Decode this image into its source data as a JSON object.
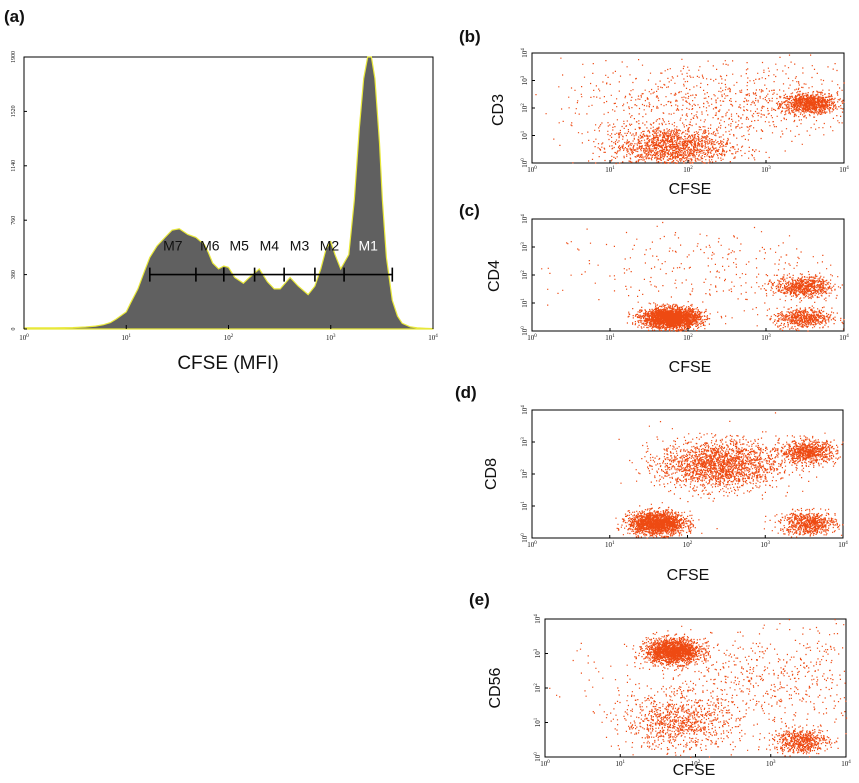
{
  "figure": {
    "panels": {
      "a": {
        "letter": "(a)"
      },
      "b": {
        "letter": "(b)"
      },
      "c": {
        "letter": "(c)"
      },
      "d": {
        "letter": "(d)"
      },
      "e": {
        "letter": "(e)"
      }
    }
  },
  "chart_data": [
    {
      "type": "area",
      "panel": "(a)",
      "xlabel": "CFSE (MFI)",
      "ylabel": "",
      "x_scale": "log",
      "xlim": [
        1,
        10000
      ],
      "ylim": [
        0,
        1900
      ],
      "x_tick_labels": [
        "10^0",
        "10^1",
        "10^2",
        "10^3",
        "10^4"
      ],
      "y_tick_labels": [
        "0",
        "380",
        "760",
        "1140",
        "1520",
        "1900"
      ],
      "series": [
        {
          "x": [
            1,
            2,
            3,
            4,
            5,
            6,
            7,
            8,
            10,
            11,
            13,
            15,
            17,
            20,
            24,
            28,
            33,
            40,
            48,
            58,
            63,
            70,
            80,
            90,
            100,
            115,
            140,
            160,
            200,
            240,
            280,
            320,
            400,
            480,
            600,
            700,
            800,
            900,
            1000,
            1100,
            1250,
            1500,
            1700,
            1900,
            2100,
            2300,
            2500,
            2700,
            3000,
            3200,
            3500,
            4000,
            4500,
            5000,
            6000,
            7000,
            8500,
            10000
          ],
          "values": [
            8,
            8,
            10,
            14,
            20,
            30,
            45,
            70,
            120,
            180,
            280,
            400,
            500,
            580,
            640,
            690,
            700,
            660,
            640,
            590,
            540,
            460,
            420,
            440,
            430,
            360,
            320,
            360,
            420,
            330,
            280,
            280,
            360,
            300,
            240,
            300,
            420,
            560,
            610,
            520,
            420,
            520,
            900,
            1400,
            1750,
            1900,
            1900,
            1750,
            1300,
            900,
            500,
            200,
            90,
            40,
            15,
            8,
            5,
            3
          ]
        }
      ],
      "gates": {
        "labels": [
          "M7",
          "M6",
          "M5",
          "M4",
          "M3",
          "M2",
          "M1"
        ],
        "boundaries": [
          17,
          48,
          90,
          180,
          350,
          700,
          1350,
          4000
        ],
        "level": 380
      }
    },
    {
      "type": "scatter",
      "panel": "(b)",
      "xlabel": "CFSE",
      "ylabel": "CD3",
      "x_scale": "log",
      "y_scale": "log",
      "xlim": [
        1,
        10000
      ],
      "ylim": [
        1,
        10000
      ],
      "tick_labels": [
        "10^0",
        "10^1",
        "10^2",
        "10^3",
        "10^4"
      ],
      "populations": [
        {
          "x": 3500,
          "y": 150,
          "count": 900,
          "density": "high"
        },
        {
          "x": 60,
          "y": 4,
          "count": 1500,
          "density": "medium"
        },
        {
          "x": 300,
          "y": 150,
          "count": 900,
          "density": "low"
        }
      ]
    },
    {
      "type": "scatter",
      "panel": "(c)",
      "xlabel": "CFSE",
      "ylabel": "CD4",
      "x_scale": "log",
      "y_scale": "log",
      "xlim": [
        1,
        10000
      ],
      "ylim": [
        1,
        10000
      ],
      "tick_labels": [
        "10^0",
        "10^1",
        "10^2",
        "10^3",
        "10^4"
      ],
      "populations": [
        {
          "x": 60,
          "y": 3,
          "count": 2600,
          "density": "high"
        },
        {
          "x": 3000,
          "y": 40,
          "count": 700,
          "density": "high"
        },
        {
          "x": 3000,
          "y": 3,
          "count": 600,
          "density": "high"
        },
        {
          "x": 200,
          "y": 150,
          "count": 300,
          "density": "low"
        }
      ]
    },
    {
      "type": "scatter",
      "panel": "(d)",
      "xlabel": "CFSE",
      "ylabel": "CD8",
      "x_scale": "log",
      "y_scale": "log",
      "xlim": [
        1,
        10000
      ],
      "ylim": [
        1,
        10000
      ],
      "tick_labels": [
        "10^0",
        "10^1",
        "10^2",
        "10^3",
        "10^4"
      ],
      "populations": [
        {
          "x": 40,
          "y": 3,
          "count": 1800,
          "density": "high"
        },
        {
          "x": 3500,
          "y": 500,
          "count": 800,
          "density": "high"
        },
        {
          "x": 3500,
          "y": 3,
          "count": 700,
          "density": "high"
        },
        {
          "x": 250,
          "y": 200,
          "count": 2000,
          "density": "medium"
        }
      ]
    },
    {
      "type": "scatter",
      "panel": "(e)",
      "xlabel": "CFSE",
      "ylabel": "CD56",
      "x_scale": "log",
      "y_scale": "log",
      "xlim": [
        1,
        10000
      ],
      "ylim": [
        1,
        10000
      ],
      "tick_labels": [
        "10^0",
        "10^1",
        "10^2",
        "10^3",
        "10^4"
      ],
      "populations": [
        {
          "x": 50,
          "y": 1200,
          "count": 1800,
          "density": "high"
        },
        {
          "x": 60,
          "y": 10,
          "count": 900,
          "density": "medium"
        },
        {
          "x": 2500,
          "y": 3,
          "count": 600,
          "density": "high"
        },
        {
          "x": 1000,
          "y": 200,
          "count": 800,
          "density": "low"
        }
      ]
    }
  ],
  "colors": {
    "histogram_fill": "#606060",
    "histogram_edge": "#e8e83a",
    "dot": "#ee4a12",
    "gate_line": "#000000",
    "gate_label_dark": "#111111",
    "gate_label_light": "#ffffff"
  }
}
